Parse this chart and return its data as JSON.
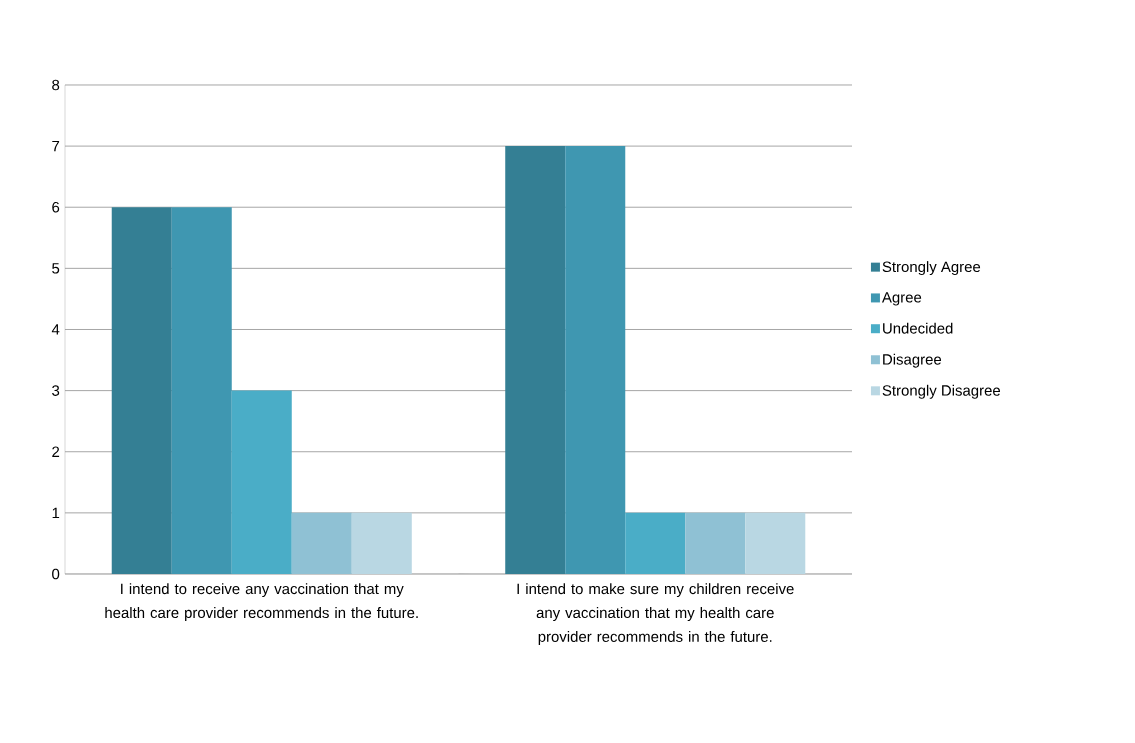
{
  "chart_data": {
    "type": "bar",
    "categories": [
      "I intend to receive any vaccination that my health care provider recommends in the future.",
      "I intend to make sure my children receive any vaccination that my health care provider recommends in the future."
    ],
    "series": [
      {
        "name": "Strongly Agree",
        "color": "#347f94",
        "values": [
          6,
          7
        ]
      },
      {
        "name": "Agree",
        "color": "#3f97b1",
        "values": [
          6,
          7
        ]
      },
      {
        "name": "Undecided",
        "color": "#4aadc7",
        "values": [
          3,
          1
        ]
      },
      {
        "name": "Disagree",
        "color": "#8fc1d4",
        "values": [
          1,
          1
        ]
      },
      {
        "name": "Strongly Disagree",
        "color": "#b9d7e3",
        "values": [
          1,
          1
        ]
      }
    ],
    "ylim": [
      0,
      8
    ],
    "yticks": [
      0,
      1,
      2,
      3,
      4,
      5,
      6,
      7,
      8
    ],
    "grid": "y",
    "legend": "right"
  }
}
